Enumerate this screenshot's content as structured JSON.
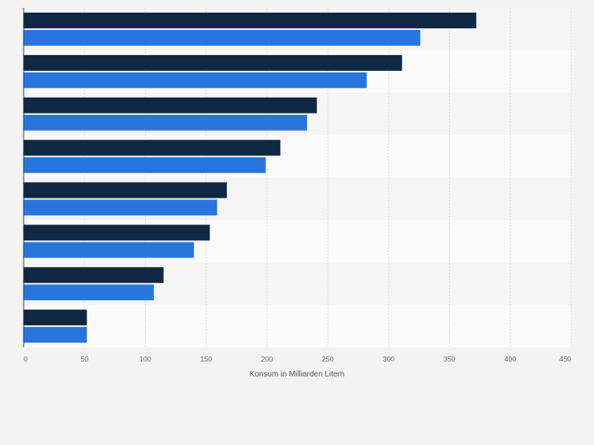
{
  "chart_data": {
    "type": "bar",
    "orientation": "horizontal",
    "categories": [
      "",
      "",
      "",
      "",
      "",
      "",
      "",
      ""
    ],
    "series": [
      {
        "color": "#0f2742",
        "values": [
          372,
          311,
          241,
          211,
          167,
          153,
          115,
          52
        ]
      },
      {
        "color": "#2876dd",
        "values": [
          326,
          282,
          233,
          199,
          159,
          140,
          107,
          52
        ]
      }
    ],
    "title": "",
    "xlabel": "Konsum in Milliarden Litern",
    "ylabel": "",
    "xlim": [
      0,
      450
    ],
    "xticks": [
      0,
      50,
      100,
      150,
      200,
      250,
      300,
      350,
      400,
      450
    ],
    "grid": true,
    "legend": "none"
  }
}
